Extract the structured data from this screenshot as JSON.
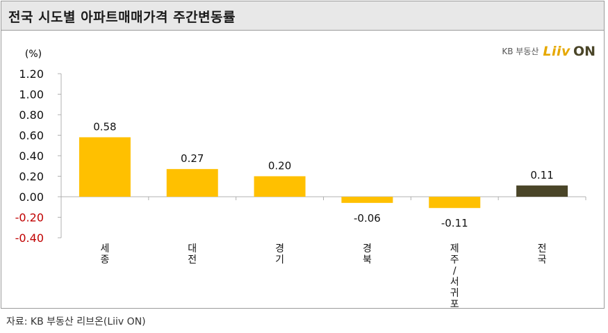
{
  "title": "전국 시도별 아파트매매가격 주간변동률",
  "logo": {
    "kb_text": "KB 부동산",
    "liiv": "Liiv",
    "on": "ON"
  },
  "source": "자료: KB 부동산  리브온(Liiv ON)",
  "colors": {
    "positive": "#ffc000",
    "negative_tick": "#c00000",
    "national": "#4a4528",
    "axis": "#b0b0b0"
  },
  "chart_data": {
    "type": "bar",
    "unit_label": "(%)",
    "categories": [
      "세종",
      "대전",
      "경기",
      "경북",
      "제주/서귀포",
      "전국"
    ],
    "values": [
      0.58,
      0.27,
      0.2,
      -0.06,
      -0.11,
      0.11
    ],
    "value_labels": [
      "0.58",
      "0.27",
      "0.20",
      "-0.06",
      "-0.11",
      "0.11"
    ],
    "ylim": [
      -0.4,
      1.2
    ],
    "yticks": [
      "1.20",
      "1.00",
      "0.80",
      "0.60",
      "0.40",
      "0.20",
      "0.00",
      "-0.20",
      "-0.40"
    ],
    "ytick_values": [
      1.2,
      1.0,
      0.8,
      0.6,
      0.4,
      0.2,
      0.0,
      -0.2,
      -0.4
    ],
    "highlight_category": "전국",
    "grid": false,
    "legend": "none"
  }
}
